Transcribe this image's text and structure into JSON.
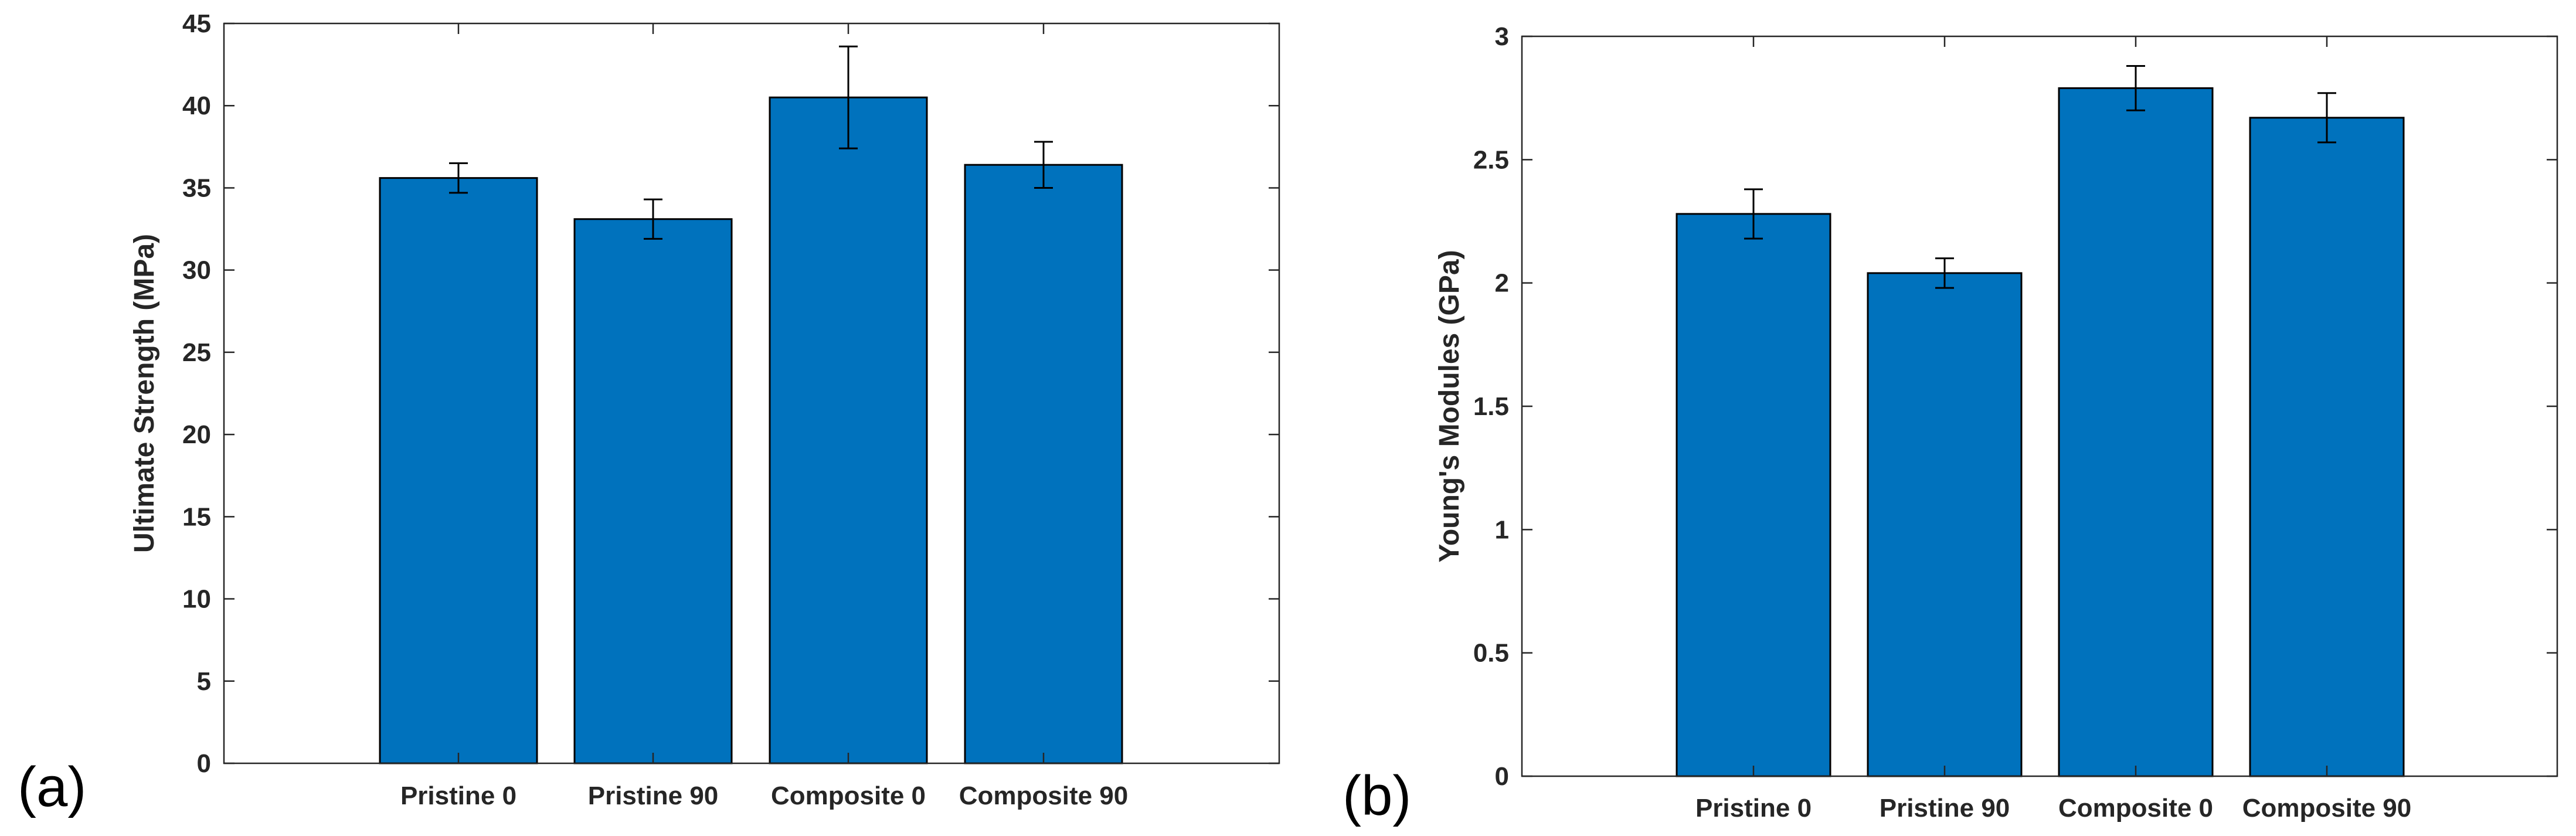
{
  "chart_data": [
    {
      "type": "bar",
      "panel_label": "(a)",
      "categories": [
        "Pristine 0",
        "Pristine 90",
        "Composite 0",
        "Composite 90"
      ],
      "values": [
        35.6,
        33.1,
        40.5,
        36.4
      ],
      "errors": [
        0.9,
        1.2,
        3.1,
        1.4
      ],
      "title": "",
      "xlabel": "",
      "ylabel": "Ultimate Strength (MPa)",
      "ylim": [
        0,
        45
      ],
      "yticks": [
        0,
        5,
        10,
        15,
        20,
        25,
        30,
        35,
        40,
        45
      ],
      "ytick_labels": [
        "0",
        "5",
        "10",
        "15",
        "20",
        "25",
        "30",
        "35",
        "40",
        "45"
      ],
      "bar_color": "#0072BD",
      "grid": false
    },
    {
      "type": "bar",
      "panel_label": "(b)",
      "categories": [
        "Pristine 0",
        "Pristine 90",
        "Composite 0",
        "Composite 90"
      ],
      "values": [
        2.28,
        2.04,
        2.79,
        2.67
      ],
      "errors": [
        0.1,
        0.06,
        0.09,
        0.1
      ],
      "title": "",
      "xlabel": "",
      "ylabel": "Young's Modules (GPa)",
      "ylim": [
        0,
        3
      ],
      "yticks": [
        0,
        0.5,
        1,
        1.5,
        2,
        2.5,
        3
      ],
      "ytick_labels": [
        "0",
        "0.5",
        "1",
        "1.5",
        "2",
        "2.5",
        "3"
      ],
      "bar_color": "#0072BD",
      "grid": false
    }
  ]
}
